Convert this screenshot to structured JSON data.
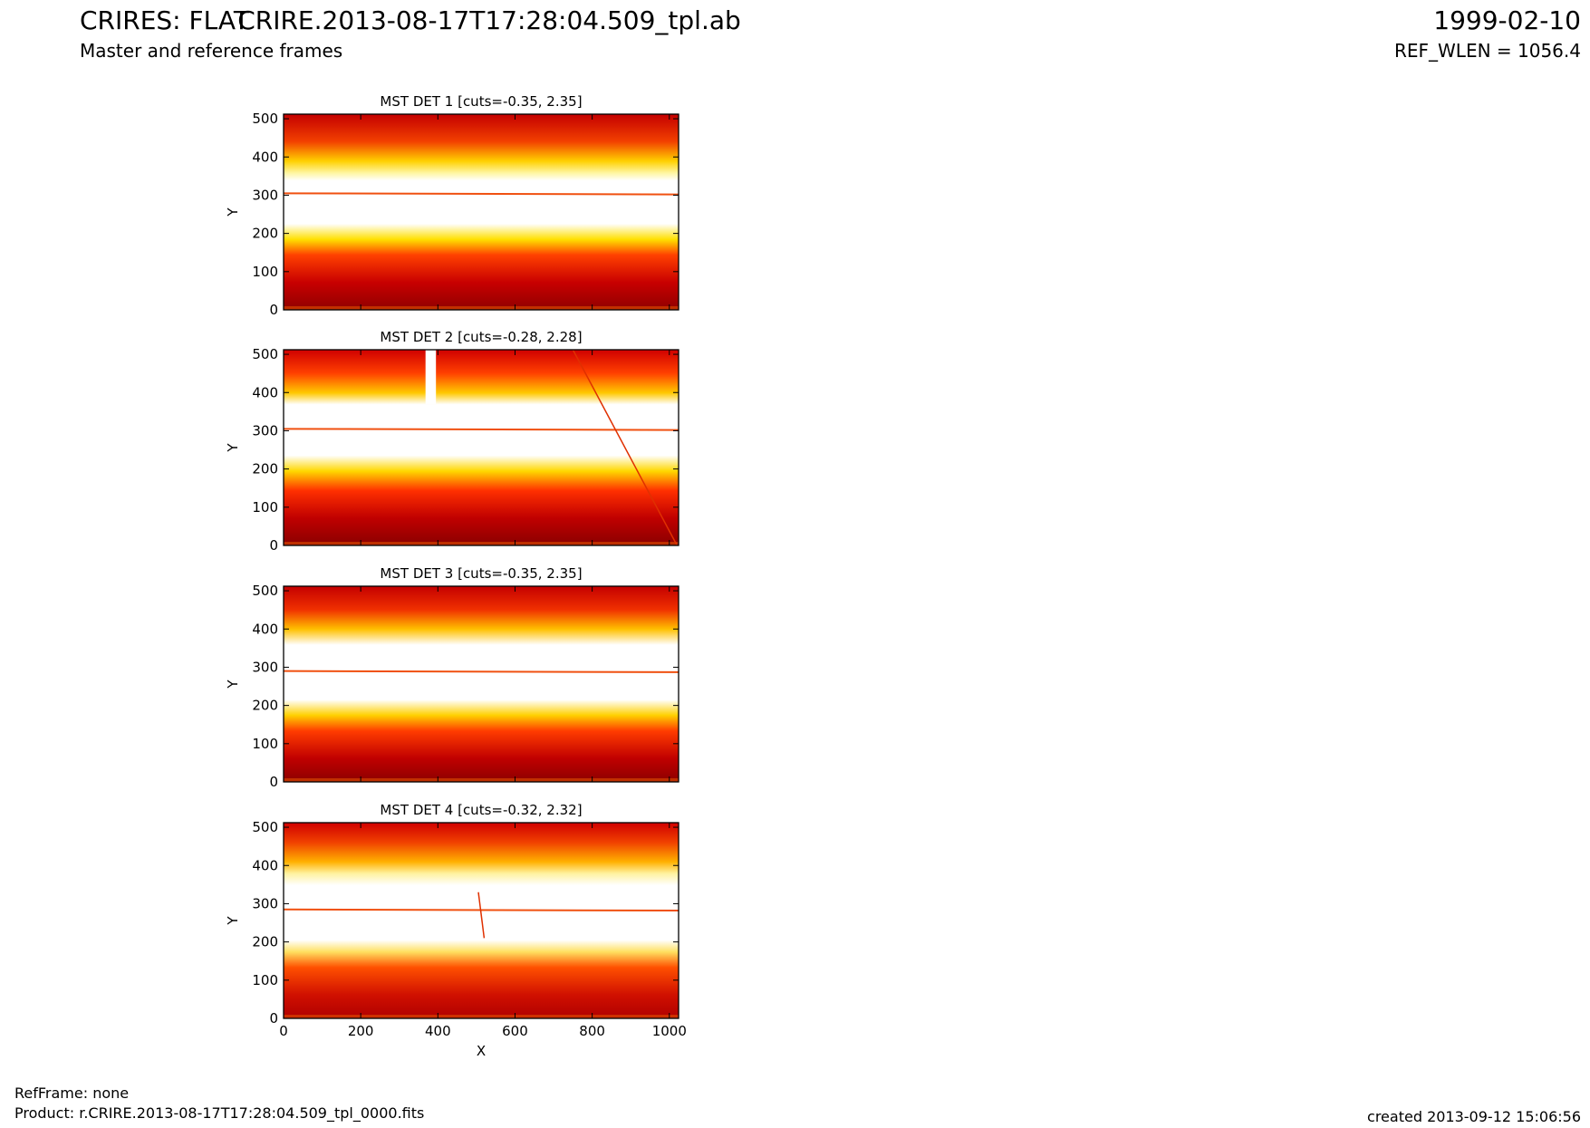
{
  "header": {
    "title": "CRIRES: FLAT",
    "subtitle": "Master and reference frames",
    "product_name": "CRIRE.2013-08-17T17:28:04.509_tpl.ab",
    "date": "1999-02-10",
    "ref_wlen": "REF_WLEN = 1056.4"
  },
  "footer": {
    "ref_frame": "RefFrame: none",
    "product": "Product: r.CRIRE.2013-08-17T17:28:04.509_tpl_0000.fits",
    "created": "created 2013-09-12 15:06:56"
  },
  "chart_data": [
    {
      "type": "heatmap",
      "title": "MST DET 1 [cuts=-0.35, 2.35]",
      "ylabel": "Y",
      "xlabel": "",
      "xlim": [
        0,
        1024
      ],
      "ylim": [
        0,
        512
      ],
      "yticks": [
        "0",
        "100",
        "200",
        "300",
        "400",
        "500"
      ],
      "xticks": [],
      "colormap": "hot",
      "cuts": [
        -0.35,
        2.35
      ]
    },
    {
      "type": "heatmap",
      "title": "MST DET 2 [cuts=-0.28, 2.28]",
      "ylabel": "Y",
      "xlabel": "",
      "xlim": [
        0,
        1024
      ],
      "ylim": [
        0,
        512
      ],
      "yticks": [
        "0",
        "100",
        "200",
        "300",
        "400",
        "500"
      ],
      "xticks": [],
      "colormap": "hot",
      "cuts": [
        -0.28,
        2.28
      ]
    },
    {
      "type": "heatmap",
      "title": "MST DET 3 [cuts=-0.35, 2.35]",
      "ylabel": "Y",
      "xlabel": "",
      "xlim": [
        0,
        1024
      ],
      "ylim": [
        0,
        512
      ],
      "yticks": [
        "0",
        "100",
        "200",
        "300",
        "400",
        "500"
      ],
      "xticks": [],
      "colormap": "hot",
      "cuts": [
        -0.35,
        2.35
      ]
    },
    {
      "type": "heatmap",
      "title": "MST DET 4 [cuts=-0.32, 2.32]",
      "ylabel": "Y",
      "xlabel": "X",
      "xlim": [
        0,
        1024
      ],
      "ylim": [
        0,
        512
      ],
      "yticks": [
        "0",
        "100",
        "200",
        "300",
        "400",
        "500"
      ],
      "xticks": [
        "0",
        "200",
        "400",
        "600",
        "800",
        "1000"
      ],
      "colormap": "hot",
      "cuts": [
        -0.32,
        2.32
      ]
    }
  ]
}
